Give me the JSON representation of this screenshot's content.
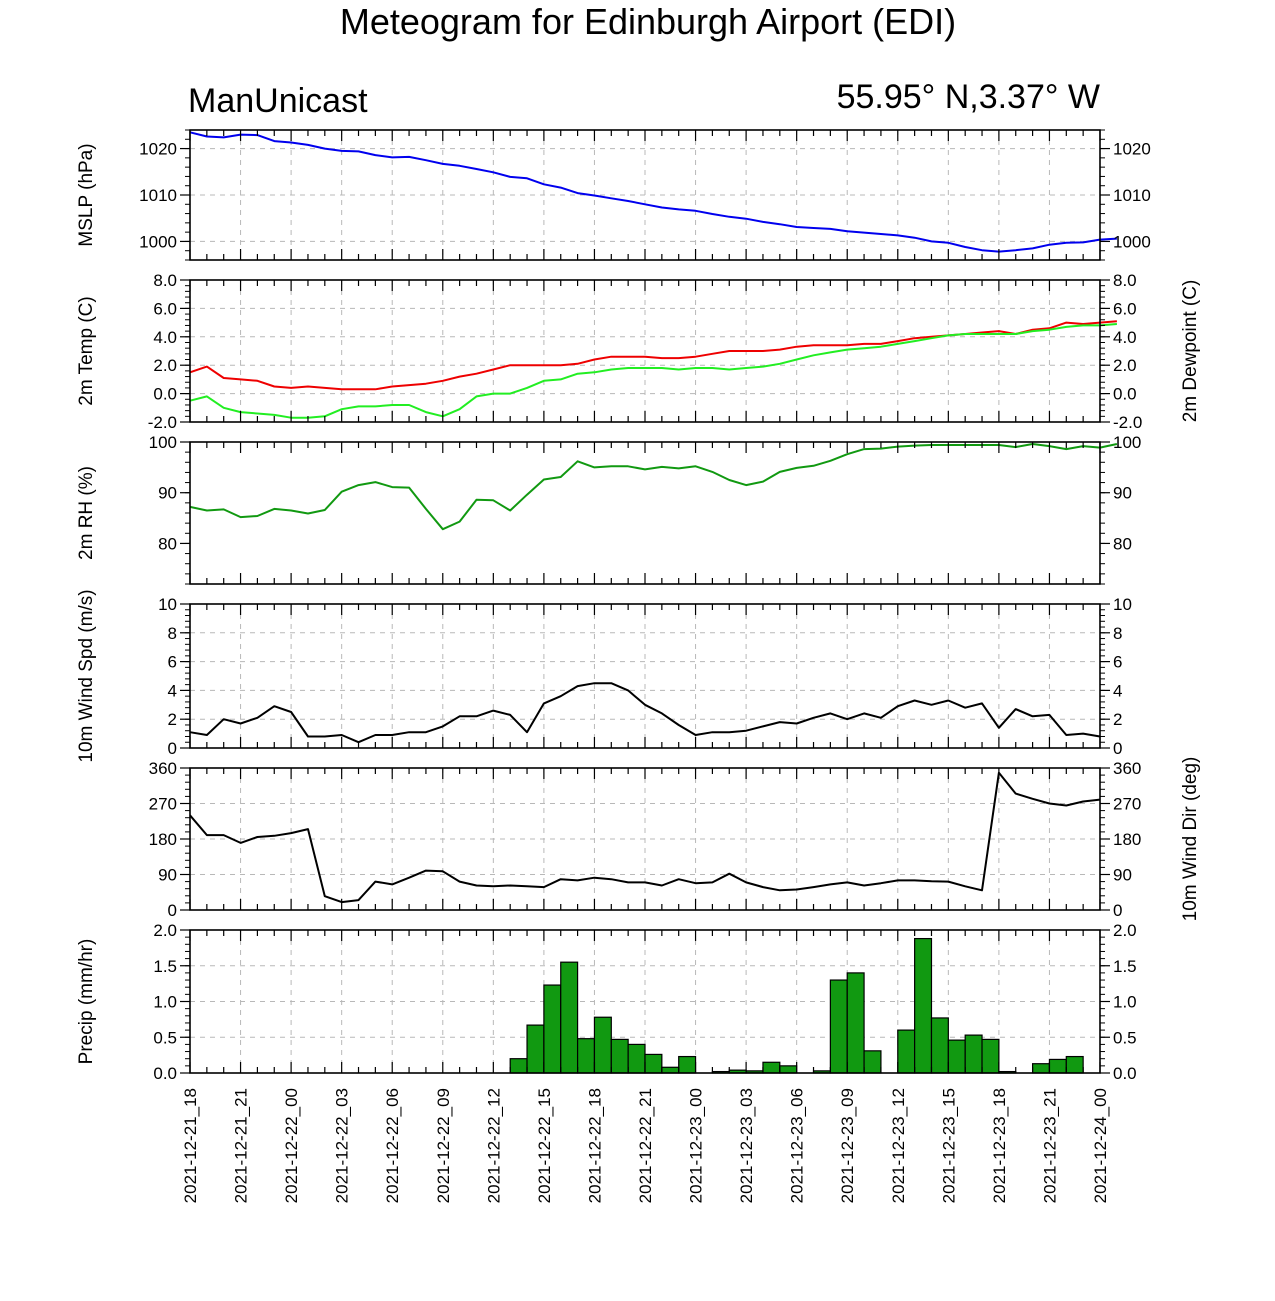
{
  "header": {
    "title": "Meteogram for Edinburgh Airport (EDI)",
    "model": "ManUnicast",
    "location": "55.95° N,3.37° W"
  },
  "colors": {
    "mslp": "#0000ee",
    "temp": "#ee0000",
    "dewpoint": "#22ee22",
    "rh": "#119911",
    "wind": "#000000",
    "precip_fill": "#119911",
    "grid": "#b8b8b8"
  },
  "x_axis": {
    "start_hour": 0,
    "end_hour": 54,
    "tick_labels": [
      "2021-12-21_18",
      "2021-12-21_21",
      "2021-12-22_00",
      "2021-12-22_03",
      "2021-12-22_06",
      "2021-12-22_09",
      "2021-12-22_12",
      "2021-12-22_15",
      "2021-12-22_18",
      "2021-12-22_21",
      "2021-12-23_00",
      "2021-12-23_03",
      "2021-12-23_06",
      "2021-12-23_09",
      "2021-12-23_12",
      "2021-12-23_15",
      "2021-12-23_18",
      "2021-12-23_21",
      "2021-12-24_00"
    ]
  },
  "chart_data": [
    {
      "type": "line",
      "id": "mslp",
      "ylabel": "MSLP (hPa)",
      "ylim": [
        996,
        1024
      ],
      "yticks": [
        1000,
        1010,
        1020
      ],
      "ytick_labels": [
        "1000",
        "1010",
        "1020"
      ],
      "grid": true,
      "series": [
        {
          "values": [
            1023.5,
            1022.6,
            1022.4,
            1023.0,
            1022.9,
            1021.6,
            1021.3,
            1020.8,
            1020.0,
            1019.5,
            1019.4,
            1018.6,
            1018.1,
            1018.2,
            1017.5,
            1016.7,
            1016.3,
            1015.6,
            1014.9,
            1013.9,
            1013.6,
            1012.3,
            1011.6,
            1010.4,
            1009.9,
            1009.3,
            1008.7,
            1008.0,
            1007.3,
            1006.9,
            1006.6,
            1005.9,
            1005.3,
            1004.9,
            1004.2,
            1003.7,
            1003.1,
            1002.9,
            1002.7,
            1002.2,
            1001.9,
            1001.6,
            1001.3,
            1000.8,
            1000.0,
            999.7,
            998.8,
            998.1,
            997.8,
            998.1,
            998.5,
            999.3,
            999.7,
            999.8,
            1000.4,
            1000.6
          ]
        }
      ]
    },
    {
      "type": "line",
      "id": "temp",
      "ylabel": "2m Temp (C)",
      "ylabel_right": "2m Dewpoint (C)",
      "ylim": [
        -2,
        8
      ],
      "yticks": [
        -2,
        0,
        2,
        4,
        6,
        8
      ],
      "ytick_labels": [
        "-2.0",
        "0.0",
        "2.0",
        "4.0",
        "6.0",
        "8.0"
      ],
      "grid": true,
      "series": [
        {
          "values": [
            1.5,
            1.9,
            1.1,
            1.0,
            0.9,
            0.5,
            0.4,
            0.5,
            0.4,
            0.3,
            0.3,
            0.3,
            0.5,
            0.6,
            0.7,
            0.9,
            1.2,
            1.4,
            1.7,
            2.0,
            2.0,
            2.0,
            2.0,
            2.1,
            2.4,
            2.6,
            2.6,
            2.6,
            2.5,
            2.5,
            2.6,
            2.8,
            3.0,
            3.0,
            3.0,
            3.1,
            3.3,
            3.4,
            3.4,
            3.4,
            3.5,
            3.5,
            3.7,
            3.9,
            4.0,
            4.1,
            4.2,
            4.3,
            4.4,
            4.2,
            4.5,
            4.6,
            5.0,
            4.9,
            5.0,
            5.1
          ]
        },
        {
          "values": [
            -0.5,
            -0.2,
            -1.0,
            -1.3,
            -1.4,
            -1.5,
            -1.7,
            -1.7,
            -1.6,
            -1.1,
            -0.9,
            -0.9,
            -0.8,
            -0.8,
            -1.3,
            -1.6,
            -1.1,
            -0.2,
            0.0,
            0.0,
            0.4,
            0.9,
            1.0,
            1.4,
            1.5,
            1.7,
            1.8,
            1.8,
            1.8,
            1.7,
            1.8,
            1.8,
            1.7,
            1.8,
            1.9,
            2.1,
            2.4,
            2.7,
            2.9,
            3.1,
            3.2,
            3.3,
            3.5,
            3.7,
            3.9,
            4.1,
            4.2,
            4.2,
            4.2,
            4.2,
            4.4,
            4.5,
            4.7,
            4.8,
            4.8,
            4.9
          ]
        }
      ]
    },
    {
      "type": "line",
      "id": "rh",
      "ylabel": "2m RH (%)",
      "ylim": [
        72,
        100
      ],
      "yticks": [
        80,
        90,
        100
      ],
      "ytick_labels": [
        "80",
        "90",
        "100"
      ],
      "grid": false,
      "series": [
        {
          "values": [
            87.2,
            86.5,
            86.7,
            85.2,
            85.4,
            86.8,
            86.5,
            85.9,
            86.6,
            90.2,
            91.5,
            92.1,
            91.1,
            91.0,
            86.8,
            82.8,
            84.3,
            88.6,
            88.5,
            86.5,
            89.6,
            92.6,
            93.1,
            96.2,
            95.0,
            95.2,
            95.2,
            94.6,
            95.1,
            94.8,
            95.2,
            94.1,
            92.5,
            91.5,
            92.2,
            94.1,
            94.9,
            95.3,
            96.3,
            97.6,
            98.6,
            98.7,
            99.1,
            99.3,
            99.4,
            99.4,
            99.4,
            99.4,
            99.4,
            99.0,
            99.6,
            99.2,
            98.6,
            99.2,
            98.9,
            99.6
          ]
        }
      ]
    },
    {
      "type": "line",
      "id": "wspd",
      "ylabel": "10m Wind Spd (m/s)",
      "ylim": [
        0,
        10
      ],
      "yticks": [
        0,
        2,
        4,
        6,
        8,
        10
      ],
      "ytick_labels": [
        "0",
        "2",
        "4",
        "6",
        "8",
        "10"
      ],
      "grid": true,
      "series": [
        {
          "values": [
            1.1,
            0.9,
            2.0,
            1.7,
            2.1,
            2.9,
            2.5,
            0.8,
            0.8,
            0.9,
            0.4,
            0.9,
            0.9,
            1.1,
            1.1,
            1.5,
            2.2,
            2.2,
            2.6,
            2.3,
            1.1,
            3.1,
            3.6,
            4.3,
            4.5,
            4.5,
            4.0,
            3.0,
            2.4,
            1.6,
            0.9,
            1.1,
            1.1,
            1.2,
            1.5,
            1.8,
            1.7,
            2.1,
            2.4,
            2.0,
            2.4,
            2.1,
            2.9,
            3.3,
            3.0,
            3.3,
            2.8,
            3.1,
            1.4,
            2.7,
            2.2,
            2.3,
            0.9,
            1.0,
            0.8
          ]
        }
      ]
    },
    {
      "type": "line",
      "id": "wdir",
      "ylabel": "",
      "ylabel_right": "10m Wind Dir (deg)",
      "ylim": [
        0,
        360
      ],
      "yticks": [
        0,
        90,
        180,
        270,
        360
      ],
      "ytick_labels": [
        "0",
        "90",
        "180",
        "270",
        "360"
      ],
      "grid": true,
      "series": [
        {
          "values": [
            240,
            190,
            190,
            170,
            185,
            188,
            195,
            205,
            35,
            20,
            25,
            72,
            65,
            82,
            100,
            98,
            72,
            62,
            60,
            62,
            60,
            58,
            78,
            75,
            82,
            78,
            70,
            70,
            62,
            78,
            68,
            70,
            92,
            70,
            58,
            50,
            52,
            58,
            65,
            70,
            62,
            68,
            75,
            75,
            73,
            72,
            60,
            50,
            348,
            295,
            282,
            270,
            265,
            275,
            280
          ]
        }
      ]
    },
    {
      "type": "bar",
      "id": "precip",
      "ylabel": "Precip (mm/hr)",
      "ylim": [
        0,
        2
      ],
      "yticks": [
        0,
        0.5,
        1.0,
        1.5,
        2.0
      ],
      "ytick_labels": [
        "0.0",
        "0.5",
        "1.0",
        "1.5",
        "2.0"
      ],
      "grid": true,
      "bar_hours": [
        19,
        20,
        21,
        22,
        23,
        24,
        25,
        26,
        27,
        28,
        29,
        30,
        31,
        32,
        33,
        34,
        35,
        36,
        37,
        38,
        39,
        40,
        41,
        42,
        43,
        44,
        45,
        46,
        47,
        48,
        49,
        50,
        51,
        52,
        53
      ],
      "values": [
        0.2,
        0.67,
        1.23,
        1.55,
        0.48,
        0.78,
        0.47,
        0.4,
        0.26,
        0.08,
        0.23,
        0.0,
        0.02,
        0.04,
        0.03,
        0.15,
        0.1,
        0.0,
        0.03,
        1.3,
        1.4,
        0.31,
        0.0,
        0.6,
        1.88,
        0.77,
        0.46,
        0.53,
        0.47,
        0.02,
        0.0,
        0.13,
        0.19,
        0.23,
        0.0
      ]
    }
  ]
}
